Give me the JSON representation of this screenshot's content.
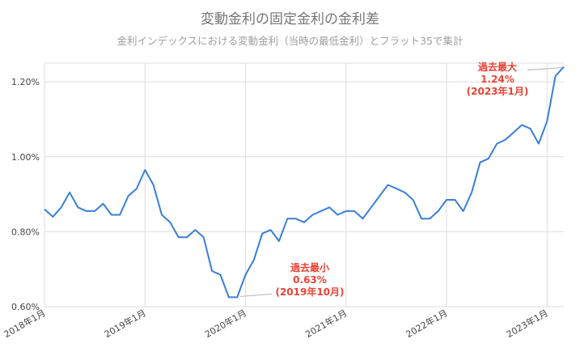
{
  "chart_data": {
    "type": "line",
    "title": "変動金利の固定金利の金利差",
    "subtitle": "金利インデックスにおける変動金利（当時の最低金利）とフラット35で集計",
    "xlabel": "",
    "ylabel": "",
    "ylim": [
      0.6,
      1.25
    ],
    "yticks": [
      "0.60%",
      "0.80%",
      "1.00%",
      "1.20%"
    ],
    "ytick_values": [
      0.6,
      0.8,
      1.0,
      1.2
    ],
    "xticks": [
      "2018年1月",
      "2019年1月",
      "2020年1月",
      "2021年1月",
      "2022年1月",
      "2023年1月"
    ],
    "grid": true,
    "legend": "none",
    "colors": {
      "line": "#3a7fd6",
      "annotation": "#ea4335",
      "grid": "#dddddd"
    },
    "series": [
      {
        "values": [
          0.86,
          0.84,
          0.865,
          0.905,
          0.865,
          0.855,
          0.855,
          0.875,
          0.845,
          0.845,
          0.895,
          0.915,
          0.965,
          0.925,
          0.845,
          0.825,
          0.785,
          0.785,
          0.805,
          0.785,
          0.695,
          0.685,
          0.625,
          0.625,
          0.685,
          0.725,
          0.795,
          0.805,
          0.775,
          0.835,
          0.835,
          0.825,
          0.845,
          0.855,
          0.865,
          0.845,
          0.855,
          0.855,
          0.835,
          0.865,
          0.895,
          0.925,
          0.915,
          0.905,
          0.885,
          0.835,
          0.835,
          0.855,
          0.885,
          0.885,
          0.855,
          0.905,
          0.985,
          0.995,
          1.035,
          1.045,
          1.065,
          1.085,
          1.075,
          1.035,
          1.095,
          1.215,
          1.24
        ]
      }
    ],
    "annotations": [
      {
        "lines": [
          "過去最小",
          "0.63%",
          "(2019年10月)"
        ]
      },
      {
        "lines": [
          "過去最大",
          "1.24%",
          "(2023年1月)"
        ]
      }
    ]
  }
}
